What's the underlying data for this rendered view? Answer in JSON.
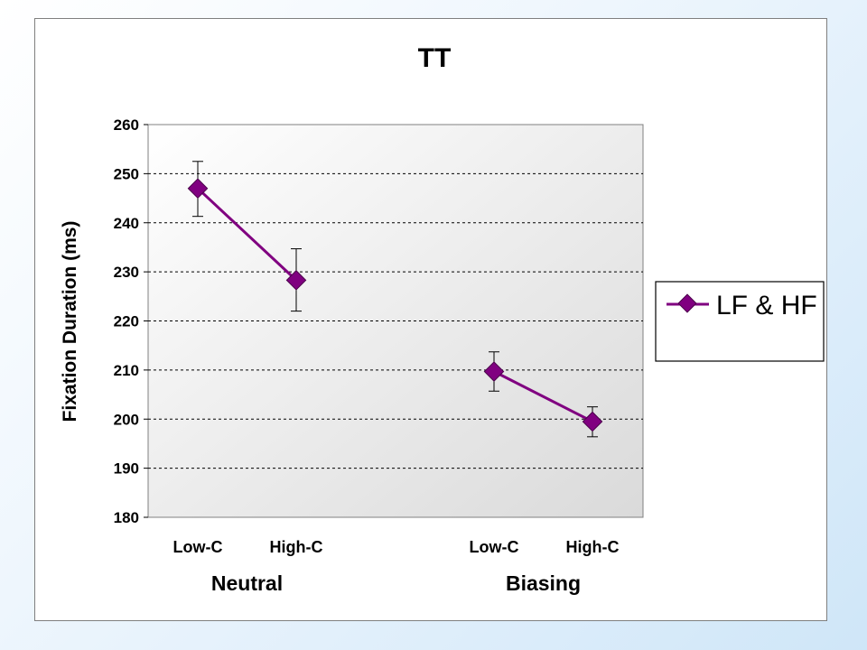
{
  "chart_data": {
    "type": "line",
    "title": "TT",
    "ylabel": "Fixation Duration (ms)",
    "xlabel": "",
    "ylim": [
      180,
      260
    ],
    "yticks": [
      180,
      190,
      200,
      210,
      220,
      230,
      240,
      250,
      260
    ],
    "grid": "horizontal-dashed",
    "legend_position": "right",
    "categories": [
      "Low-C",
      "High-C",
      "Low-C",
      "High-C"
    ],
    "groups": [
      {
        "label": "Neutral",
        "categories": [
          "Low-C",
          "High-C"
        ]
      },
      {
        "label": "Biasing",
        "categories": [
          "Low-C",
          "High-C"
        ]
      }
    ],
    "series": [
      {
        "name": "LF & HF",
        "color": "#800080",
        "segments": [
          [
            {
              "category": "Low-C",
              "group": "Neutral",
              "y": 247,
              "err_low": 241.3,
              "err_high": 252.5
            },
            {
              "category": "High-C",
              "group": "Neutral",
              "y": 228.3,
              "err_low": 222,
              "err_high": 234.7
            }
          ],
          [
            {
              "category": "Low-C",
              "group": "Biasing",
              "y": 209.7,
              "err_low": 205.7,
              "err_high": 213.7
            },
            {
              "category": "High-C",
              "group": "Biasing",
              "y": 199.5,
              "err_low": 196.4,
              "err_high": 202.5
            }
          ]
        ]
      }
    ]
  },
  "colors": {
    "plot_background_top": "#ffffff",
    "plot_background_bottom": "#dadada",
    "series": "#800080"
  }
}
